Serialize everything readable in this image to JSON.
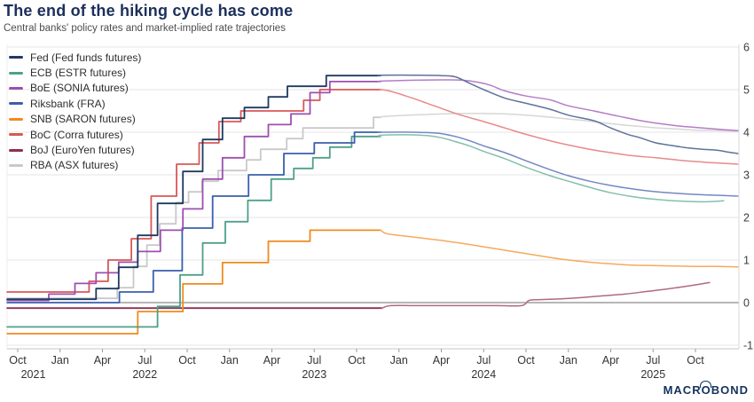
{
  "branding": {
    "logo_text": "MACROBOND"
  },
  "chart_data": {
    "type": "line",
    "title": "The end of the hiking cycle has come",
    "subtitle": "Central banks' policy rates and market-implied rate trajectories",
    "x_axis": {
      "note": "m = months since Oct 2021; quarterly ticks",
      "ticks": [
        {
          "m": 0,
          "label": "Oct"
        },
        {
          "m": 3,
          "label": "Jan"
        },
        {
          "m": 6,
          "label": "Apr"
        },
        {
          "m": 9,
          "label": "Jul"
        },
        {
          "m": 12,
          "label": "Oct"
        },
        {
          "m": 15,
          "label": "Jan"
        },
        {
          "m": 18,
          "label": "Apr"
        },
        {
          "m": 21,
          "label": "Jul"
        },
        {
          "m": 24,
          "label": "Oct"
        },
        {
          "m": 27,
          "label": "Jan"
        },
        {
          "m": 30,
          "label": "Apr"
        },
        {
          "m": 33,
          "label": "Jul"
        },
        {
          "m": 36,
          "label": "Oct"
        },
        {
          "m": 39,
          "label": "Jan"
        },
        {
          "m": 42,
          "label": "Apr"
        },
        {
          "m": 45,
          "label": "Jul"
        },
        {
          "m": 48,
          "label": "Oct"
        }
      ],
      "year_labels": [
        {
          "m": 1.1,
          "label": "2021"
        },
        {
          "m": 9,
          "label": "2022"
        },
        {
          "m": 21,
          "label": "2023"
        },
        {
          "m": 33,
          "label": "2024"
        },
        {
          "m": 45,
          "label": "2025"
        }
      ]
    },
    "y_axis": {
      "side": "right",
      "min": -1,
      "max": 6,
      "ticks": [
        -1,
        0,
        1,
        2,
        3,
        4,
        5,
        6
      ],
      "unit": "%"
    },
    "grid": {
      "horizontal": true,
      "vertical": false,
      "zero_line_dark": true
    },
    "legend_position": "top-left-inside",
    "series": [
      {
        "name": "RBA",
        "label": "RBA (ASX futures)",
        "color": "#C9C9C9",
        "fut_color": "#D6D6D6",
        "hist": [
          [
            -0.75,
            0.1
          ],
          [
            7.05,
            0.35
          ],
          [
            8.2,
            0.85
          ],
          [
            9.15,
            1.35
          ],
          [
            10.05,
            1.85
          ],
          [
            11.2,
            2.35
          ],
          [
            12.1,
            2.6
          ],
          [
            13.05,
            2.85
          ],
          [
            14.2,
            3.1
          ],
          [
            16.2,
            3.35
          ],
          [
            17.2,
            3.6
          ],
          [
            19.05,
            3.85
          ],
          [
            20.2,
            4.1
          ],
          [
            25.2,
            4.35
          ]
        ],
        "fut": [
          [
            25.7,
            4.36
          ],
          [
            27,
            4.39
          ],
          [
            28.5,
            4.41
          ],
          [
            30,
            4.43
          ],
          [
            31.5,
            4.44
          ],
          [
            33,
            4.44
          ],
          [
            34.5,
            4.43
          ],
          [
            36,
            4.4
          ],
          [
            37.5,
            4.36
          ],
          [
            39,
            4.31
          ],
          [
            40.5,
            4.26
          ],
          [
            42,
            4.2
          ],
          [
            43.5,
            4.15
          ],
          [
            45,
            4.11
          ],
          [
            46.5,
            4.08
          ],
          [
            48,
            4.05
          ],
          [
            49.5,
            4.04
          ],
          [
            51,
            4.02
          ]
        ]
      },
      {
        "name": "BoJ",
        "label": "BoJ (EuroYen futures)",
        "color": "#8F2F4F",
        "fut_color": "#AE6B80",
        "hist": [
          [
            -0.75,
            -0.13
          ]
        ],
        "fut": [
          [
            25.8,
            -0.13
          ],
          [
            26.4,
            -0.07
          ],
          [
            28,
            -0.07
          ],
          [
            30,
            -0.07
          ],
          [
            32,
            -0.07
          ],
          [
            34,
            -0.07
          ],
          [
            35.7,
            -0.07
          ],
          [
            36.2,
            0.05
          ],
          [
            37,
            0.07
          ],
          [
            38.5,
            0.09
          ],
          [
            40,
            0.12
          ],
          [
            41.5,
            0.16
          ],
          [
            43,
            0.2
          ],
          [
            44.5,
            0.26
          ],
          [
            46,
            0.32
          ],
          [
            47.5,
            0.39
          ],
          [
            49,
            0.47
          ]
        ]
      },
      {
        "name": "SNB",
        "label": "SNB (SARON futures)",
        "color": "#EF8B1F",
        "fut_color": "#F6A95C",
        "hist": [
          [
            -0.75,
            -0.73
          ],
          [
            8.5,
            -0.21
          ],
          [
            11.7,
            0.44
          ],
          [
            14.5,
            0.94
          ],
          [
            17.75,
            1.44
          ],
          [
            20.7,
            1.7
          ]
        ],
        "fut": [
          [
            25.7,
            1.7
          ],
          [
            26.1,
            1.62
          ],
          [
            27,
            1.58
          ],
          [
            28.5,
            1.52
          ],
          [
            30,
            1.46
          ],
          [
            31.5,
            1.39
          ],
          [
            33,
            1.31
          ],
          [
            34.5,
            1.23
          ],
          [
            36,
            1.15
          ],
          [
            37.5,
            1.07
          ],
          [
            39,
            1.0
          ],
          [
            40.5,
            0.95
          ],
          [
            42,
            0.91
          ],
          [
            43.5,
            0.88
          ],
          [
            45,
            0.87
          ],
          [
            46.5,
            0.86
          ],
          [
            48,
            0.85
          ],
          [
            49.5,
            0.85
          ],
          [
            51,
            0.84
          ]
        ]
      },
      {
        "name": "ECB",
        "label": "ECB (ESTR futures)",
        "color": "#4DA08A",
        "fut_color": "#82C0AB",
        "hist": [
          [
            -0.75,
            -0.57
          ],
          [
            9.9,
            -0.09
          ],
          [
            11.5,
            0.65
          ],
          [
            13.1,
            1.4
          ],
          [
            14.7,
            1.9
          ],
          [
            16.3,
            2.4
          ],
          [
            17.95,
            2.9
          ],
          [
            19.55,
            3.15
          ],
          [
            20.9,
            3.4
          ],
          [
            22.1,
            3.65
          ],
          [
            23.65,
            3.9
          ]
        ],
        "fut": [
          [
            25.7,
            3.93
          ],
          [
            27.5,
            3.94
          ],
          [
            29,
            3.92
          ],
          [
            30,
            3.87
          ],
          [
            31,
            3.78
          ],
          [
            32,
            3.68
          ],
          [
            33,
            3.55
          ],
          [
            34.5,
            3.38
          ],
          [
            36,
            3.18
          ],
          [
            37.7,
            2.98
          ],
          [
            39,
            2.85
          ],
          [
            40.8,
            2.68
          ],
          [
            42,
            2.58
          ],
          [
            43.5,
            2.49
          ],
          [
            45,
            2.43
          ],
          [
            46.5,
            2.39
          ],
          [
            48,
            2.37
          ],
          [
            49,
            2.37
          ],
          [
            50,
            2.39
          ]
        ]
      },
      {
        "name": "Riksbank",
        "label": "Riksbank (FRA)",
        "color": "#3A5FAD",
        "fut_color": "#7487C4",
        "hist": [
          [
            -0.75,
            0.0
          ],
          [
            7.2,
            0.25
          ],
          [
            9.6,
            0.75
          ],
          [
            11.65,
            1.75
          ],
          [
            13.8,
            2.5
          ],
          [
            16.35,
            3.0
          ],
          [
            18.85,
            3.5
          ],
          [
            21.0,
            3.75
          ],
          [
            23.85,
            4.0
          ]
        ],
        "fut": [
          [
            25.7,
            4.0
          ],
          [
            28,
            4.0
          ],
          [
            29.7,
            3.98
          ],
          [
            31,
            3.9
          ],
          [
            32,
            3.8
          ],
          [
            33,
            3.68
          ],
          [
            34.5,
            3.52
          ],
          [
            36,
            3.33
          ],
          [
            37.7,
            3.12
          ],
          [
            39,
            2.98
          ],
          [
            40.5,
            2.85
          ],
          [
            42,
            2.75
          ],
          [
            43.5,
            2.67
          ],
          [
            45,
            2.61
          ],
          [
            46.5,
            2.57
          ],
          [
            48,
            2.54
          ],
          [
            49.5,
            2.52
          ],
          [
            51,
            2.5
          ]
        ]
      },
      {
        "name": "BoC",
        "label": "BoC (Corra futures)",
        "color": "#D95757",
        "fut_color": "#E88A8A",
        "hist": [
          [
            -0.75,
            0.25
          ],
          [
            5.05,
            0.5
          ],
          [
            6.4,
            1.0
          ],
          [
            8.05,
            1.5
          ],
          [
            9.45,
            2.5
          ],
          [
            11.25,
            3.25
          ],
          [
            12.85,
            3.75
          ],
          [
            14.25,
            4.25
          ],
          [
            15.8,
            4.5
          ],
          [
            20.25,
            4.75
          ],
          [
            21.4,
            5.0
          ]
        ],
        "fut": [
          [
            25.7,
            5.0
          ],
          [
            26.3,
            4.97
          ],
          [
            27.5,
            4.85
          ],
          [
            29,
            4.68
          ],
          [
            30.5,
            4.5
          ],
          [
            31.4,
            4.4
          ],
          [
            33,
            4.25
          ],
          [
            34.5,
            4.1
          ],
          [
            36,
            3.95
          ],
          [
            37.7,
            3.8
          ],
          [
            39,
            3.7
          ],
          [
            40.5,
            3.6
          ],
          [
            42,
            3.52
          ],
          [
            43.5,
            3.45
          ],
          [
            45.2,
            3.4
          ],
          [
            47,
            3.34
          ],
          [
            48.5,
            3.3
          ],
          [
            50,
            3.27
          ],
          [
            51,
            3.25
          ]
        ]
      },
      {
        "name": "BoE",
        "label": "BoE (SONIA futures)",
        "color": "#9D4FB0",
        "fut_color": "#B57CC8",
        "hist": [
          [
            -0.75,
            0.05
          ],
          [
            2.2,
            0.2
          ],
          [
            4.05,
            0.45
          ],
          [
            5.55,
            0.7
          ],
          [
            7.15,
            0.95
          ],
          [
            8.5,
            1.2
          ],
          [
            10.1,
            1.7
          ],
          [
            11.7,
            2.2
          ],
          [
            13.1,
            2.9
          ],
          [
            14.5,
            3.4
          ],
          [
            16.05,
            3.9
          ],
          [
            17.75,
            4.18
          ],
          [
            19.35,
            4.43
          ],
          [
            20.7,
            4.93
          ],
          [
            22.1,
            5.19
          ]
        ],
        "fut": [
          [
            25.7,
            5.2
          ],
          [
            28,
            5.22
          ],
          [
            30,
            5.23
          ],
          [
            31.5,
            5.22
          ],
          [
            32.5,
            5.18
          ],
          [
            33.5,
            5.1
          ],
          [
            34.5,
            4.97
          ],
          [
            36,
            4.85
          ],
          [
            37.7,
            4.76
          ],
          [
            39,
            4.62
          ],
          [
            40.8,
            4.5
          ],
          [
            42.5,
            4.38
          ],
          [
            44,
            4.28
          ],
          [
            45.5,
            4.2
          ],
          [
            47,
            4.14
          ],
          [
            48.5,
            4.1
          ],
          [
            50,
            4.06
          ],
          [
            51,
            4.04
          ]
        ]
      },
      {
        "name": "Fed",
        "label": "Fed (Fed funds futures)",
        "color": "#1F3A60",
        "fut_color": "#5E729B",
        "hist": [
          [
            -0.75,
            0.08
          ],
          [
            5.55,
            0.33
          ],
          [
            7.15,
            0.83
          ],
          [
            8.5,
            1.58
          ],
          [
            9.9,
            2.33
          ],
          [
            11.7,
            3.08
          ],
          [
            13.1,
            3.83
          ],
          [
            14.5,
            4.33
          ],
          [
            16.05,
            4.58
          ],
          [
            17.75,
            4.83
          ],
          [
            19.1,
            5.08
          ],
          [
            21.85,
            5.33
          ]
        ],
        "fut": [
          [
            25.7,
            5.34
          ],
          [
            28,
            5.34
          ],
          [
            30,
            5.33
          ],
          [
            31,
            5.3
          ],
          [
            32,
            5.15
          ],
          [
            33,
            5.0
          ],
          [
            34.5,
            4.8
          ],
          [
            36,
            4.68
          ],
          [
            37.7,
            4.54
          ],
          [
            39,
            4.4
          ],
          [
            40.8,
            4.27
          ],
          [
            42,
            4.1
          ],
          [
            43.2,
            3.95
          ],
          [
            44,
            3.88
          ],
          [
            45.2,
            3.75
          ],
          [
            46.5,
            3.68
          ],
          [
            47.5,
            3.63
          ],
          [
            48.5,
            3.6
          ],
          [
            49.5,
            3.58
          ],
          [
            50.2,
            3.54
          ],
          [
            51,
            3.5
          ]
        ]
      }
    ],
    "legend_order": [
      "Fed",
      "ECB",
      "BoE",
      "Riksbank",
      "SNB",
      "BoC",
      "BoJ",
      "RBA"
    ]
  }
}
